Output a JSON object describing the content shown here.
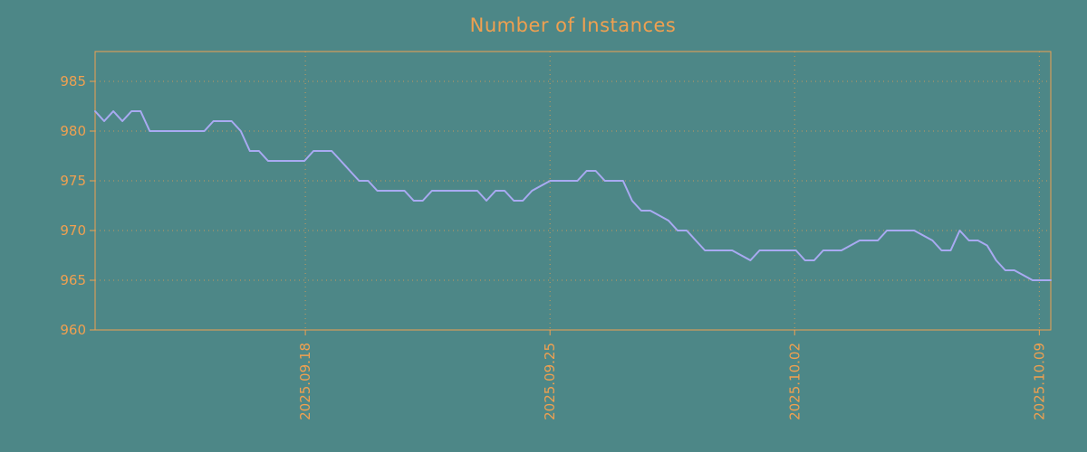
{
  "chart_data": {
    "type": "line",
    "title": "Number of Instances",
    "xlabel": "",
    "ylabel": "",
    "ylim": [
      960,
      988
    ],
    "yticks": [
      960,
      965,
      970,
      975,
      980,
      985
    ],
    "xticks": [
      {
        "label": "2025.09.18",
        "pos": 0.22
      },
      {
        "label": "2025.09.25",
        "pos": 0.476
      },
      {
        "label": "2025.10.02",
        "pos": 0.732
      },
      {
        "label": "2025.10.09",
        "pos": 0.988
      }
    ],
    "grid": true,
    "legend": "none",
    "colors": {
      "background": "#4d8787",
      "axis": "#f0a050",
      "line": "#a9aaf2"
    },
    "series": [
      {
        "name": "instances",
        "values": [
          982,
          981,
          982,
          981,
          982,
          982,
          980,
          980,
          980,
          980,
          980,
          980,
          980,
          981,
          981,
          981,
          980,
          978,
          978,
          977,
          977,
          977,
          977,
          977,
          978,
          978,
          978,
          977,
          976,
          975,
          975,
          974,
          974,
          974,
          974,
          973,
          973,
          974,
          974,
          974,
          974,
          974,
          974,
          973,
          974,
          974,
          973,
          973,
          974,
          974.5,
          975,
          975,
          975,
          975,
          976,
          976,
          975,
          975,
          975,
          973,
          972,
          972,
          971.5,
          971,
          970,
          970,
          969,
          968,
          968,
          968,
          968,
          967.5,
          967,
          968,
          968,
          968,
          968,
          968,
          967,
          967,
          968,
          968,
          968,
          968.5,
          969,
          969,
          969,
          970,
          970,
          970,
          970,
          969.5,
          969,
          968,
          968,
          970,
          969,
          969,
          968.5,
          967,
          966,
          966,
          965.5,
          965,
          965,
          965
        ]
      }
    ]
  }
}
